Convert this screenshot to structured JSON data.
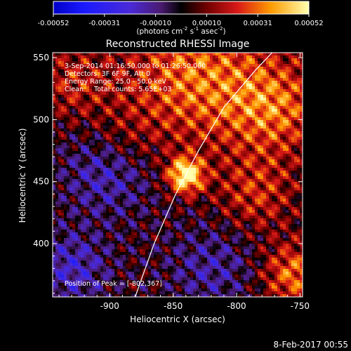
{
  "colorbar": {
    "ticks": [
      "-0.00052",
      "-0.00031",
      "-0.00010",
      "0.00010",
      "0.00031",
      "0.00052"
    ],
    "units": "(photons cm",
    "units_exp1": "-2",
    "units_mid": " s",
    "units_exp2": "-1",
    "units_end": " asec",
    "units_exp3": "-2",
    "units_close": ")"
  },
  "chart_data": {
    "type": "heatmap",
    "title": "Reconstructed RHESSI Image",
    "xlabel": "Heliocentric X (arcsec)",
    "ylabel": "Heliocentric Y (arcsec)",
    "xlim": [
      -945,
      -748
    ],
    "ylim": [
      357,
      554
    ],
    "x_ticks": [
      "-900",
      "-850",
      "-800",
      "-750"
    ],
    "y_ticks": [
      "400",
      "450",
      "500",
      "550"
    ],
    "colorbar_range": [
      -0.00052,
      0.00052
    ],
    "annotations": [
      "3-Sep-2014 01:16:50.000 to 01:26:50.000",
      "Detectors: 3F 6F 9F, Att 0",
      "Energy Range: 25.0 - 50.0 keV",
      "Clean     Total counts: 5.65E+03"
    ],
    "peak_label": "Position of Peak = [-802,367]",
    "peak": [
      -802,
      367
    ],
    "limb_curve": [
      [
        -880,
        357
      ],
      [
        -865,
        400
      ],
      [
        -848,
        440
      ],
      [
        -830,
        475
      ],
      [
        -810,
        510
      ],
      [
        -785,
        540
      ],
      [
        -772,
        554
      ]
    ],
    "sources": [
      {
        "x": -840,
        "y": 455,
        "radius": 14,
        "amplitude": 1.0
      },
      {
        "x": -835,
        "y": 535,
        "radius": 55,
        "amplitude": 0.55
      },
      {
        "x": -770,
        "y": 510,
        "radius": 40,
        "amplitude": 0.5
      },
      {
        "x": -785,
        "y": 440,
        "radius": 30,
        "amplitude": 0.35
      },
      {
        "x": -930,
        "y": 530,
        "radius": 30,
        "amplitude": 0.3
      },
      {
        "x": -755,
        "y": 375,
        "radius": 25,
        "amplitude": 0.55
      },
      {
        "x": -890,
        "y": 480,
        "radius": 30,
        "amplitude": 0.25
      }
    ],
    "negative_regions": [
      {
        "x": -900,
        "y": 460,
        "radius": 35,
        "amplitude": -0.45
      },
      {
        "x": -930,
        "y": 380,
        "radius": 30,
        "amplitude": -0.4
      },
      {
        "x": -820,
        "y": 380,
        "radius": 35,
        "amplitude": -0.3
      }
    ]
  },
  "footer": {
    "date": "8-Feb-2017 00:55"
  }
}
